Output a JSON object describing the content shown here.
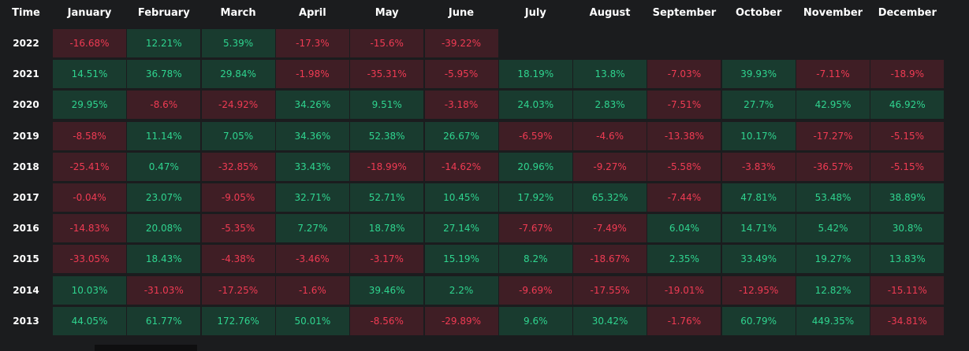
{
  "header": {
    "time_label": "Time",
    "months": [
      "January",
      "February",
      "March",
      "April",
      "May",
      "June",
      "July",
      "August",
      "September",
      "October",
      "November",
      "December"
    ]
  },
  "rows": [
    {
      "year": "2022",
      "values": [
        "-16.68%",
        "12.21%",
        "5.39%",
        "-17.3%",
        "-15.6%",
        "-39.22%",
        null,
        null,
        null,
        null,
        null,
        null
      ]
    },
    {
      "year": "2021",
      "values": [
        "14.51%",
        "36.78%",
        "29.84%",
        "-1.98%",
        "-35.31%",
        "-5.95%",
        "18.19%",
        "13.8%",
        "-7.03%",
        "39.93%",
        "-7.11%",
        "-18.9%"
      ]
    },
    {
      "year": "2020",
      "values": [
        "29.95%",
        "-8.6%",
        "-24.92%",
        "34.26%",
        "9.51%",
        "-3.18%",
        "24.03%",
        "2.83%",
        "-7.51%",
        "27.7%",
        "42.95%",
        "46.92%"
      ]
    },
    {
      "year": "2019",
      "values": [
        "-8.58%",
        "11.14%",
        "7.05%",
        "34.36%",
        "52.38%",
        "26.67%",
        "-6.59%",
        "-4.6%",
        "-13.38%",
        "10.17%",
        "-17.27%",
        "-5.15%"
      ]
    },
    {
      "year": "2018",
      "values": [
        "-25.41%",
        "0.47%",
        "-32.85%",
        "33.43%",
        "-18.99%",
        "-14.62%",
        "20.96%",
        "-9.27%",
        "-5.58%",
        "-3.83%",
        "-36.57%",
        "-5.15%"
      ]
    },
    {
      "year": "2017",
      "values": [
        "-0.04%",
        "23.07%",
        "-9.05%",
        "32.71%",
        "52.71%",
        "10.45%",
        "17.92%",
        "65.32%",
        "-7.44%",
        "47.81%",
        "53.48%",
        "38.89%"
      ]
    },
    {
      "year": "2016",
      "values": [
        "-14.83%",
        "20.08%",
        "-5.35%",
        "7.27%",
        "18.78%",
        "27.14%",
        "-7.67%",
        "-7.49%",
        "6.04%",
        "14.71%",
        "5.42%",
        "30.8%"
      ]
    },
    {
      "year": "2015",
      "values": [
        "-33.05%",
        "18.43%",
        "-4.38%",
        "-3.46%",
        "-3.17%",
        "15.19%",
        "8.2%",
        "-18.67%",
        "2.35%",
        "33.49%",
        "19.27%",
        "13.83%"
      ]
    },
    {
      "year": "2014",
      "values": [
        "10.03%",
        "-31.03%",
        "-17.25%",
        "-1.6%",
        "39.46%",
        "2.2%",
        "-9.69%",
        "-17.55%",
        "-19.01%",
        "-12.95%",
        "12.82%",
        "-15.11%"
      ]
    },
    {
      "year": "2013",
      "values": [
        "44.05%",
        "61.77%",
        "172.76%",
        "50.01%",
        "-8.56%",
        "-29.89%",
        "9.6%",
        "30.42%",
        "-1.76%",
        "60.79%",
        "449.35%",
        "-34.81%"
      ]
    }
  ],
  "colors": {
    "background": "#1b1c1e",
    "positive_bg": "#193b2f",
    "positive_text": "#2fd48f",
    "negative_bg": "#3f1e25",
    "negative_text": "#ef3b53"
  }
}
